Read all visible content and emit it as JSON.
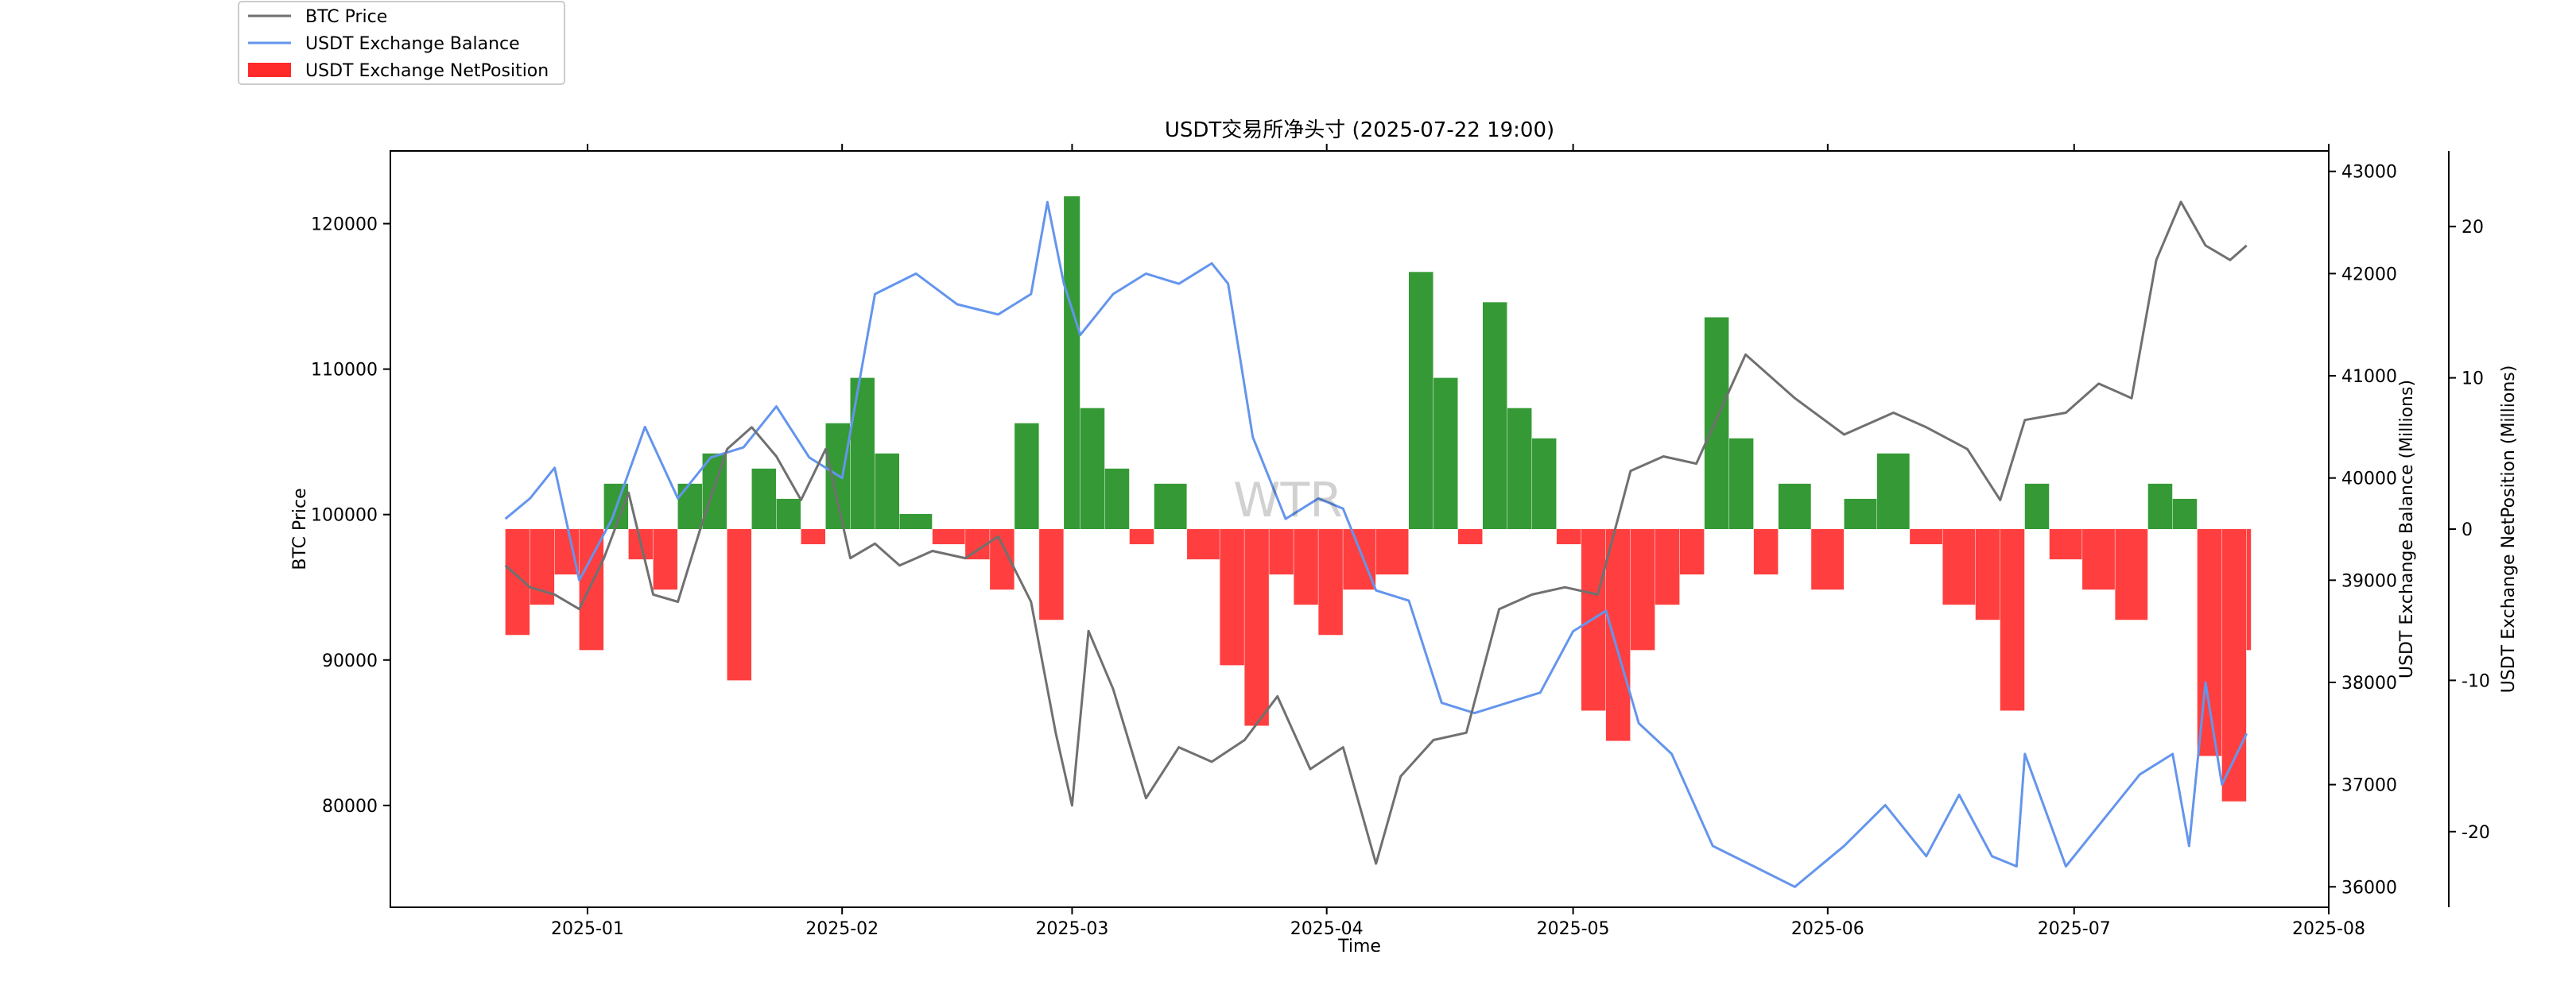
{
  "chart_data": {
    "type": "line",
    "title": "USDT交易所净头寸 (2025-07-22 19:00)",
    "xlabel": "Time",
    "ylabel_left": "BTC Price",
    "ylabel_right1": "USDT Exchange Balance (Millions)",
    "ylabel_right2": "USDT Exchange NetPosition (Millions)",
    "x_ticks": [
      "2025-01",
      "2025-02",
      "2025-03",
      "2025-04",
      "2025-05",
      "2025-06",
      "2025-07",
      "2025-08"
    ],
    "x_tick_dates": [
      "2025-01-01",
      "2025-02-01",
      "2025-03-01",
      "2025-04-01",
      "2025-05-01",
      "2025-06-01",
      "2025-07-01",
      "2025-08-01"
    ],
    "xlim": [
      "2024-12-08",
      "2025-08-01"
    ],
    "ylim_left": [
      73000,
      125000
    ],
    "yticks_left": [
      80000,
      90000,
      100000,
      110000,
      120000
    ],
    "ylim_right1": [
      35800,
      43200
    ],
    "yticks_right1": [
      36000,
      37000,
      38000,
      39000,
      40000,
      41000,
      42000,
      43000
    ],
    "ylim_right2": [
      -25,
      25
    ],
    "yticks_right2": [
      -20,
      -10,
      0,
      10,
      20
    ],
    "legend": {
      "placement": "top-left (outside plot)",
      "entries": [
        {
          "label": "BTC Price",
          "color": "#707070",
          "kind": "line"
        },
        {
          "label": "USDT Exchange Balance",
          "color": "#6495ED",
          "kind": "line"
        },
        {
          "label": "USDT Exchange NetPosition",
          "color": "#FF2A2A",
          "kind": "patch"
        }
      ]
    },
    "watermark": "WTR",
    "colors": {
      "btc": "#707070",
      "balance": "#6495ED",
      "net_pos": "#1F8F1F",
      "net_neg": "#FF2A2A"
    },
    "series": [
      {
        "name": "BTC Price",
        "axis": "left",
        "x": [
          "2024-12-22",
          "2024-12-25",
          "2024-12-28",
          "2024-12-31",
          "2025-01-03",
          "2025-01-06",
          "2025-01-09",
          "2025-01-12",
          "2025-01-15",
          "2025-01-18",
          "2025-01-21",
          "2025-01-24",
          "2025-01-27",
          "2025-01-30",
          "2025-02-02",
          "2025-02-05",
          "2025-02-08",
          "2025-02-12",
          "2025-02-16",
          "2025-02-20",
          "2025-02-24",
          "2025-02-27",
          "2025-03-01",
          "2025-03-03",
          "2025-03-06",
          "2025-03-10",
          "2025-03-14",
          "2025-03-18",
          "2025-03-22",
          "2025-03-26",
          "2025-03-30",
          "2025-04-03",
          "2025-04-07",
          "2025-04-10",
          "2025-04-14",
          "2025-04-18",
          "2025-04-22",
          "2025-04-26",
          "2025-04-30",
          "2025-05-04",
          "2025-05-08",
          "2025-05-12",
          "2025-05-16",
          "2025-05-22",
          "2025-05-28",
          "2025-06-03",
          "2025-06-09",
          "2025-06-13",
          "2025-06-18",
          "2025-06-22",
          "2025-06-25",
          "2025-06-30",
          "2025-07-04",
          "2025-07-08",
          "2025-07-11",
          "2025-07-14",
          "2025-07-17",
          "2025-07-20",
          "2025-07-22"
        ],
        "values": [
          96500,
          95000,
          94500,
          93500,
          97000,
          101500,
          94500,
          94000,
          99500,
          104500,
          106000,
          104000,
          101000,
          104500,
          97000,
          98000,
          96500,
          97500,
          97000,
          98500,
          94000,
          85000,
          80000,
          92000,
          88000,
          80500,
          84000,
          83000,
          84500,
          87500,
          82500,
          84000,
          76000,
          82000,
          84500,
          85000,
          93500,
          94500,
          95000,
          94500,
          103000,
          104000,
          103500,
          111000,
          108000,
          105500,
          107000,
          106000,
          104500,
          101000,
          106500,
          107000,
          109000,
          108000,
          117500,
          121500,
          118500,
          117500,
          118500
        ]
      },
      {
        "name": "USDT Exchange Balance",
        "axis": "right1",
        "x": [
          "2024-12-22",
          "2024-12-25",
          "2024-12-28",
          "2024-12-31",
          "2025-01-04",
          "2025-01-08",
          "2025-01-12",
          "2025-01-16",
          "2025-01-20",
          "2025-01-24",
          "2025-01-28",
          "2025-02-01",
          "2025-02-05",
          "2025-02-10",
          "2025-02-15",
          "2025-02-20",
          "2025-02-24",
          "2025-02-26",
          "2025-02-28",
          "2025-03-02",
          "2025-03-06",
          "2025-03-10",
          "2025-03-14",
          "2025-03-18",
          "2025-03-20",
          "2025-03-23",
          "2025-03-27",
          "2025-03-31",
          "2025-04-03",
          "2025-04-07",
          "2025-04-11",
          "2025-04-15",
          "2025-04-19",
          "2025-04-23",
          "2025-04-27",
          "2025-05-01",
          "2025-05-05",
          "2025-05-09",
          "2025-05-13",
          "2025-05-18",
          "2025-05-23",
          "2025-05-28",
          "2025-06-03",
          "2025-06-08",
          "2025-06-13",
          "2025-06-17",
          "2025-06-21",
          "2025-06-24",
          "2025-06-25",
          "2025-06-30",
          "2025-07-04",
          "2025-07-09",
          "2025-07-13",
          "2025-07-15",
          "2025-07-17",
          "2025-07-19",
          "2025-07-22"
        ],
        "values": [
          39600,
          39800,
          40100,
          39000,
          39600,
          40500,
          39800,
          40200,
          40300,
          40700,
          40200,
          40000,
          41800,
          42000,
          41700,
          41600,
          41800,
          42700,
          41900,
          41400,
          41800,
          42000,
          41900,
          42100,
          41900,
          40400,
          39600,
          39800,
          39700,
          38900,
          38800,
          37800,
          37700,
          37800,
          37900,
          38500,
          38700,
          37600,
          37300,
          36400,
          36200,
          36000,
          36400,
          36800,
          36300,
          36900,
          36300,
          36200,
          37300,
          36200,
          36600,
          37100,
          37300,
          36400,
          38000,
          37000,
          37500
        ]
      },
      {
        "name": "USDT Exchange NetPosition",
        "axis": "right2",
        "kind": "bar",
        "x": [
          "2024-12-22",
          "2024-12-25",
          "2024-12-28",
          "2024-12-31",
          "2025-01-03",
          "2025-01-06",
          "2025-01-09",
          "2025-01-12",
          "2025-01-15",
          "2025-01-18",
          "2025-01-21",
          "2025-01-24",
          "2025-01-27",
          "2025-01-30",
          "2025-02-02",
          "2025-02-05",
          "2025-02-08",
          "2025-02-12",
          "2025-02-16",
          "2025-02-19",
          "2025-02-22",
          "2025-02-25",
          "2025-02-28",
          "2025-03-02",
          "2025-03-05",
          "2025-03-08",
          "2025-03-11",
          "2025-03-15",
          "2025-03-19",
          "2025-03-22",
          "2025-03-25",
          "2025-03-28",
          "2025-03-31",
          "2025-04-03",
          "2025-04-07",
          "2025-04-11",
          "2025-04-14",
          "2025-04-17",
          "2025-04-20",
          "2025-04-23",
          "2025-04-26",
          "2025-04-29",
          "2025-05-02",
          "2025-05-05",
          "2025-05-08",
          "2025-05-11",
          "2025-05-14",
          "2025-05-17",
          "2025-05-20",
          "2025-05-23",
          "2025-05-26",
          "2025-05-30",
          "2025-06-03",
          "2025-06-07",
          "2025-06-11",
          "2025-06-15",
          "2025-06-19",
          "2025-06-22",
          "2025-06-25",
          "2025-06-28",
          "2025-07-02",
          "2025-07-06",
          "2025-07-10",
          "2025-07-13",
          "2025-07-16",
          "2025-07-19",
          "2025-07-22"
        ],
        "values": [
          -7,
          -5,
          -3,
          -8,
          3,
          -2,
          -4,
          3,
          5,
          -10,
          4,
          2,
          -1,
          7,
          10,
          5,
          1,
          -1,
          -2,
          -4,
          7,
          -6,
          22,
          8,
          4,
          -1,
          3,
          -2,
          -9,
          -13,
          -3,
          -5,
          -7,
          -4,
          -3,
          17,
          10,
          -1,
          15,
          8,
          6,
          -1,
          -12,
          -14,
          -8,
          -5,
          -3,
          14,
          6,
          -3,
          3,
          -4,
          2,
          5,
          -1,
          -5,
          -6,
          -12,
          3,
          -2,
          -4,
          -6,
          3,
          2,
          -15,
          -18,
          -8
        ]
      }
    ]
  }
}
